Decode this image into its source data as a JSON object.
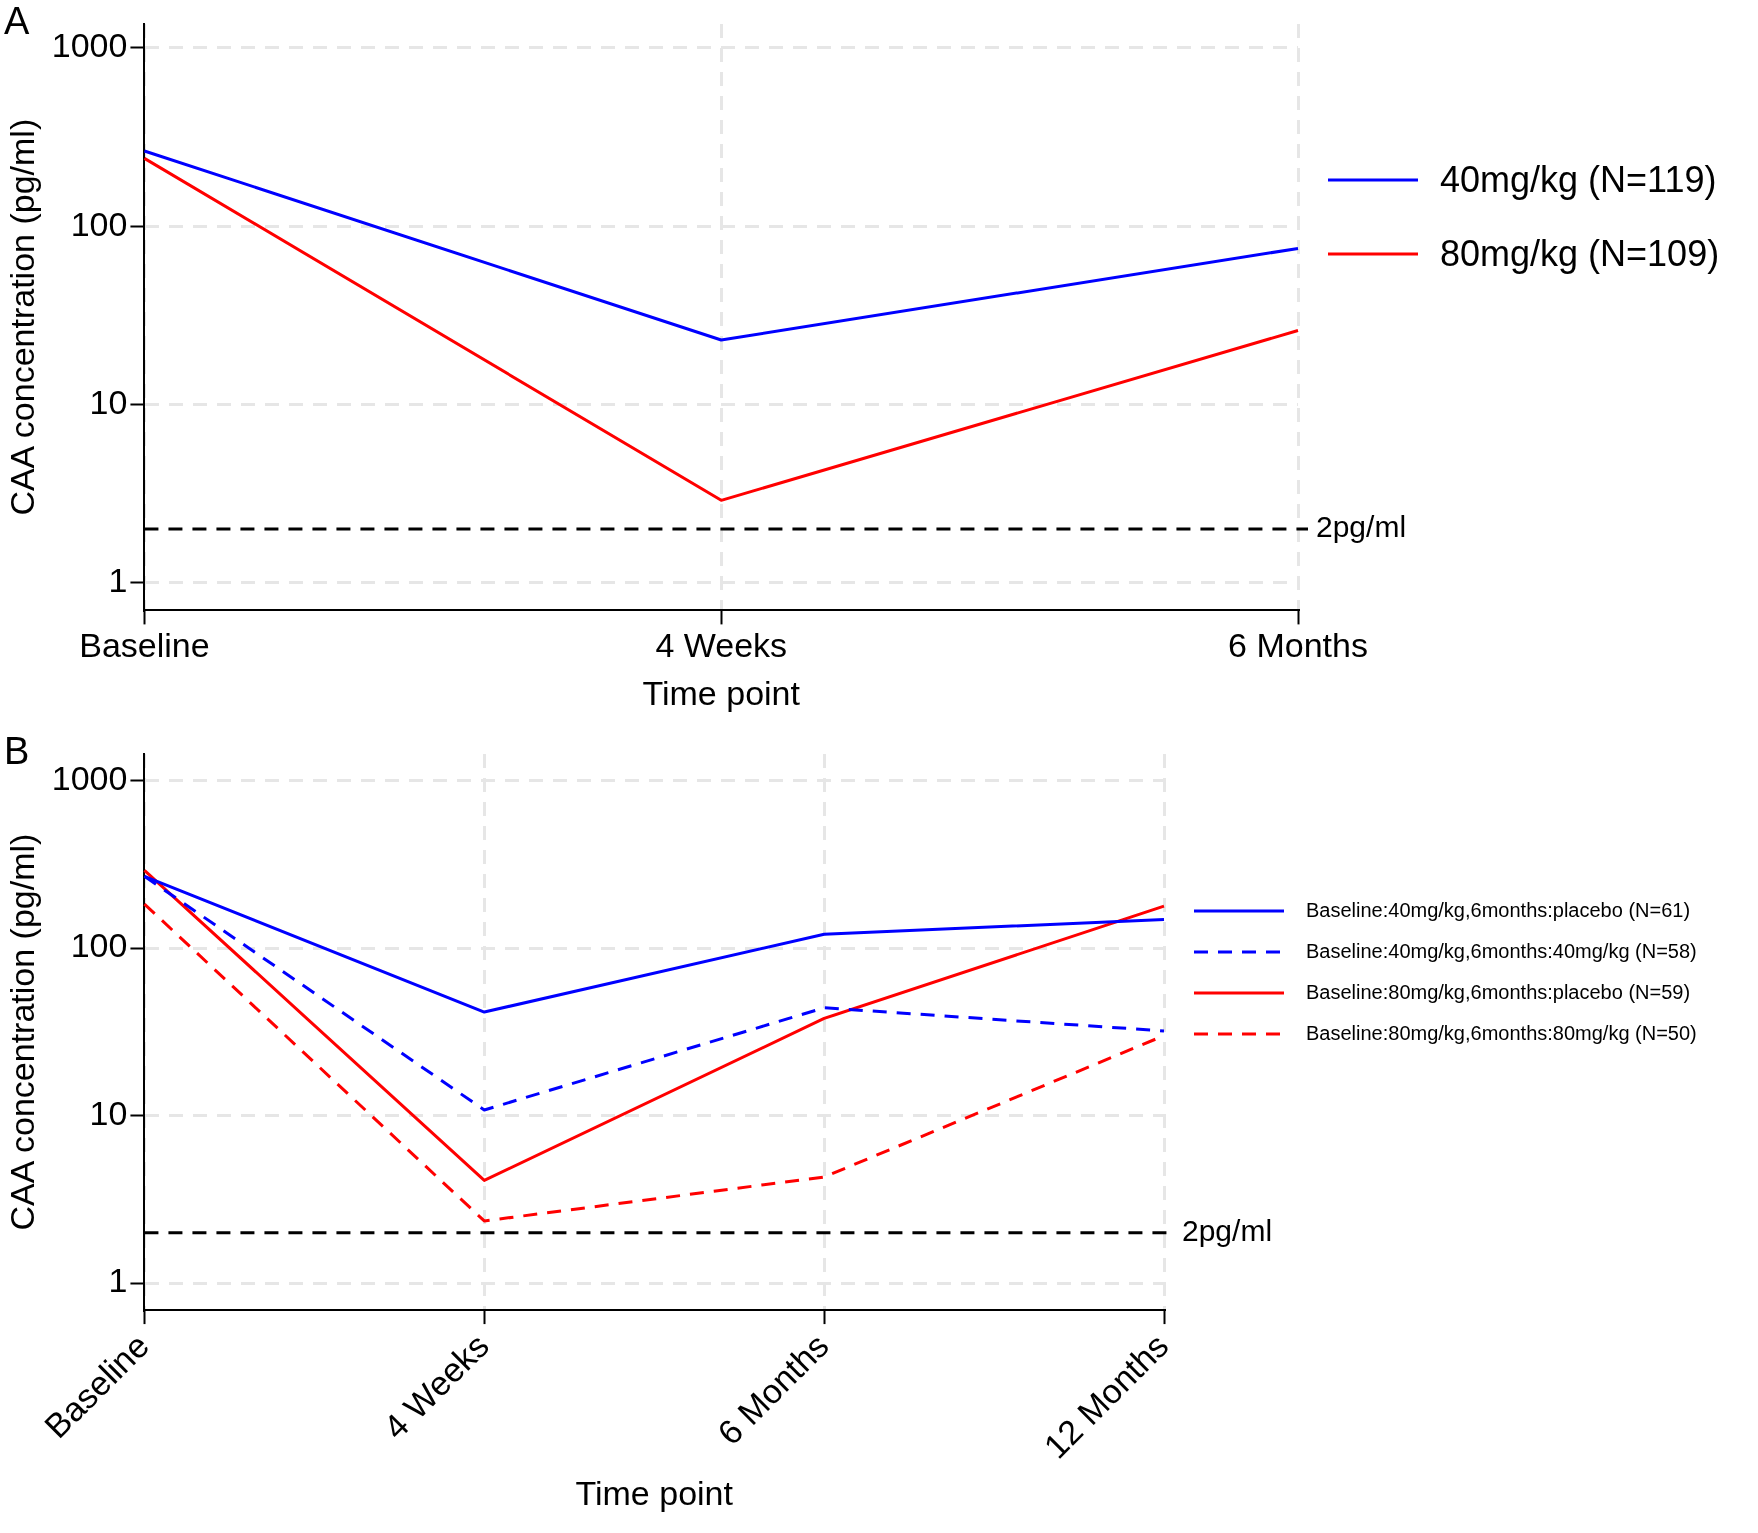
{
  "chart_data": [
    {
      "type": "line",
      "title": "A",
      "xlabel": "Time point",
      "ylabel": "CAA concentration (pg/ml)",
      "log": "y",
      "grid": true,
      "legend": "right",
      "marker": "none",
      "categories": [
        "Baseline",
        "4 Weeks",
        "6 Months"
      ],
      "ylim": [
        0.74,
        1360
      ],
      "yticks": [
        1,
        10,
        100,
        1000
      ],
      "series": [
        {
          "name": "40mg/kg (N=119)",
          "color": "#0000ff",
          "values": [
            264,
            23,
            75
          ]
        },
        {
          "name": "80mg/kg (N=109)",
          "color": "#ff0000",
          "values": [
            240,
            2.9,
            26
          ]
        }
      ],
      "ref_lines": [
        {
          "axis": "y",
          "value": 2,
          "label": "2pg/ml",
          "color": "#000000",
          "line_style": "dashed"
        }
      ]
    },
    {
      "type": "line",
      "title": "B",
      "xlabel": "Time point",
      "ylabel": "CAA concentration (pg/ml)",
      "log": "y",
      "grid": true,
      "legend": "right",
      "marker": "none",
      "categories": [
        "Baseline",
        "4 Weeks",
        "6 Months",
        "12 Months"
      ],
      "ylim": [
        0.69,
        1440
      ],
      "yticks": [
        1,
        10,
        100,
        1000
      ],
      "series": [
        {
          "name": "Baseline:40mg/kg,6months:placebo (N=61)",
          "color": "#0000ff",
          "line_style": "solid",
          "values": [
            268,
            41.5,
            121,
            148
          ]
        },
        {
          "name": "Baseline:40mg/kg,6months:40mg/kg (N=58)",
          "color": "#0000ff",
          "line_style": "dashed",
          "values": [
            268,
            10.8,
            44,
            32
          ]
        },
        {
          "name": "Baseline:80mg/kg,6months:placebo (N=59)",
          "color": "#ff0000",
          "line_style": "solid",
          "values": [
            291,
            4.1,
            38,
            178
          ]
        },
        {
          "name": "Baseline:80mg/kg,6months:80mg/kg (N=50)",
          "color": "#ff0000",
          "line_style": "dashed",
          "values": [
            183,
            2.35,
            4.3,
            30
          ]
        }
      ],
      "ref_lines": [
        {
          "axis": "y",
          "value": 2,
          "label": "2pg/ml",
          "color": "#000000",
          "line_style": "dashed"
        }
      ]
    }
  ]
}
